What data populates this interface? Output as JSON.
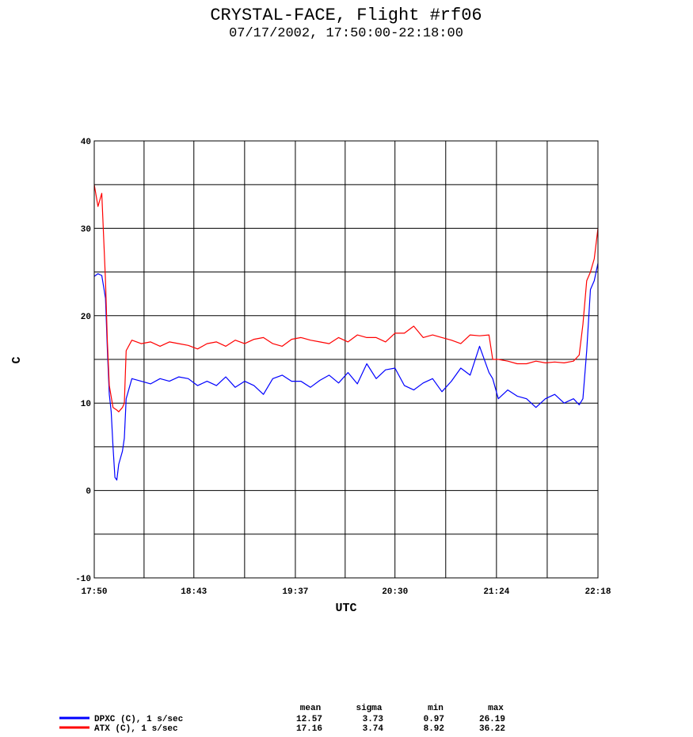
{
  "title": "CRYSTAL-FACE, Flight #rf06",
  "subtitle": "07/17/2002, 17:50:00-22:18:00",
  "chart_data": {
    "type": "line",
    "xlabel": "UTC",
    "ylabel": "C",
    "x_ticks": [
      "17:50",
      "18:43",
      "19:37",
      "20:30",
      "21:24",
      "22:18"
    ],
    "y_ticks": [
      40,
      30,
      20,
      10,
      0,
      -10
    ],
    "ylim": [
      -10,
      40
    ],
    "xlim": [
      "17:50",
      "22:18"
    ],
    "grid": true,
    "stats_headers": [
      "mean",
      "sigma",
      "min",
      "max"
    ],
    "series": [
      {
        "name": "DPXC (C), 1 s/sec",
        "color": "#0000ff",
        "stats": [
          "12.57",
          "3.73",
          "0.97",
          "26.19"
        ],
        "x": [
          "17:50",
          "17:52",
          "17:54",
          "17:56",
          "17:57",
          "17:58",
          "17:59",
          "18:00",
          "18:01",
          "18:02",
          "18:03",
          "18:05",
          "18:06",
          "18:07",
          "18:10",
          "18:15",
          "18:20",
          "18:25",
          "18:30",
          "18:35",
          "18:40",
          "18:45",
          "18:50",
          "18:55",
          "19:00",
          "19:05",
          "19:10",
          "19:15",
          "19:20",
          "19:25",
          "19:30",
          "19:35",
          "19:40",
          "19:45",
          "19:50",
          "19:55",
          "20:00",
          "20:05",
          "20:10",
          "20:15",
          "20:20",
          "20:25",
          "20:30",
          "20:35",
          "20:40",
          "20:45",
          "20:50",
          "20:55",
          "21:00",
          "21:05",
          "21:10",
          "21:15",
          "21:20",
          "21:22",
          "21:25",
          "21:30",
          "21:35",
          "21:40",
          "21:45",
          "21:50",
          "21:55",
          "22:00",
          "22:05",
          "22:08",
          "22:10",
          "22:12",
          "22:14",
          "22:16",
          "22:18"
        ],
        "y": [
          24.5,
          24.8,
          24.6,
          22,
          16,
          11,
          9,
          5,
          1.5,
          1.2,
          3,
          4.5,
          6,
          10.5,
          12.8,
          12.5,
          12.2,
          12.8,
          12.5,
          13,
          12.8,
          12,
          12.5,
          12,
          13,
          11.8,
          12.5,
          12,
          11,
          12.8,
          13.2,
          12.5,
          12.5,
          11.8,
          12.6,
          13.2,
          12.3,
          13.5,
          12.2,
          14.5,
          12.8,
          13.8,
          14,
          12,
          11.5,
          12.3,
          12.8,
          11.3,
          12.5,
          14,
          13.2,
          16.5,
          13.5,
          12.8,
          10.5,
          11.5,
          10.8,
          10.5,
          9.5,
          10.5,
          11,
          10,
          10.5,
          9.8,
          10.5,
          16,
          23,
          24,
          26
        ]
      },
      {
        "name": "ATX (C), 1 s/sec",
        "color": "#ff0000",
        "stats": [
          "17.16",
          "3.74",
          "8.92",
          "36.22"
        ],
        "x": [
          "17:50",
          "17:52",
          "17:54",
          "17:56",
          "17:57",
          "17:58",
          "18:00",
          "18:02",
          "18:03",
          "18:05",
          "18:06",
          "18:07",
          "18:10",
          "18:15",
          "18:20",
          "18:25",
          "18:30",
          "18:35",
          "18:40",
          "18:45",
          "18:50",
          "18:55",
          "19:00",
          "19:05",
          "19:10",
          "19:15",
          "19:20",
          "19:25",
          "19:30",
          "19:35",
          "19:40",
          "19:45",
          "19:50",
          "19:55",
          "20:00",
          "20:05",
          "20:10",
          "20:15",
          "20:20",
          "20:25",
          "20:30",
          "20:35",
          "20:40",
          "20:45",
          "20:50",
          "20:55",
          "21:00",
          "21:05",
          "21:10",
          "21:15",
          "21:20",
          "21:22",
          "21:25",
          "21:30",
          "21:35",
          "21:40",
          "21:45",
          "21:50",
          "21:55",
          "22:00",
          "22:05",
          "22:08",
          "22:10",
          "22:12",
          "22:14",
          "22:16",
          "22:18"
        ],
        "y": [
          35,
          32.5,
          34,
          24,
          17,
          12,
          9.5,
          9.2,
          9,
          9.5,
          10,
          16,
          17.2,
          16.8,
          17,
          16.5,
          17,
          16.8,
          16.6,
          16.2,
          16.8,
          17,
          16.5,
          17.2,
          16.8,
          17.3,
          17.5,
          16.8,
          16.5,
          17.3,
          17.5,
          17.2,
          17,
          16.8,
          17.5,
          17,
          17.8,
          17.5,
          17.5,
          17,
          18,
          18,
          18.8,
          17.5,
          17.8,
          17.5,
          17.2,
          16.8,
          17.8,
          17.7,
          17.8,
          15,
          15,
          14.8,
          14.5,
          14.5,
          14.8,
          14.6,
          14.7,
          14.6,
          14.8,
          15.5,
          19,
          24,
          25,
          26.5,
          30
        ]
      }
    ]
  }
}
